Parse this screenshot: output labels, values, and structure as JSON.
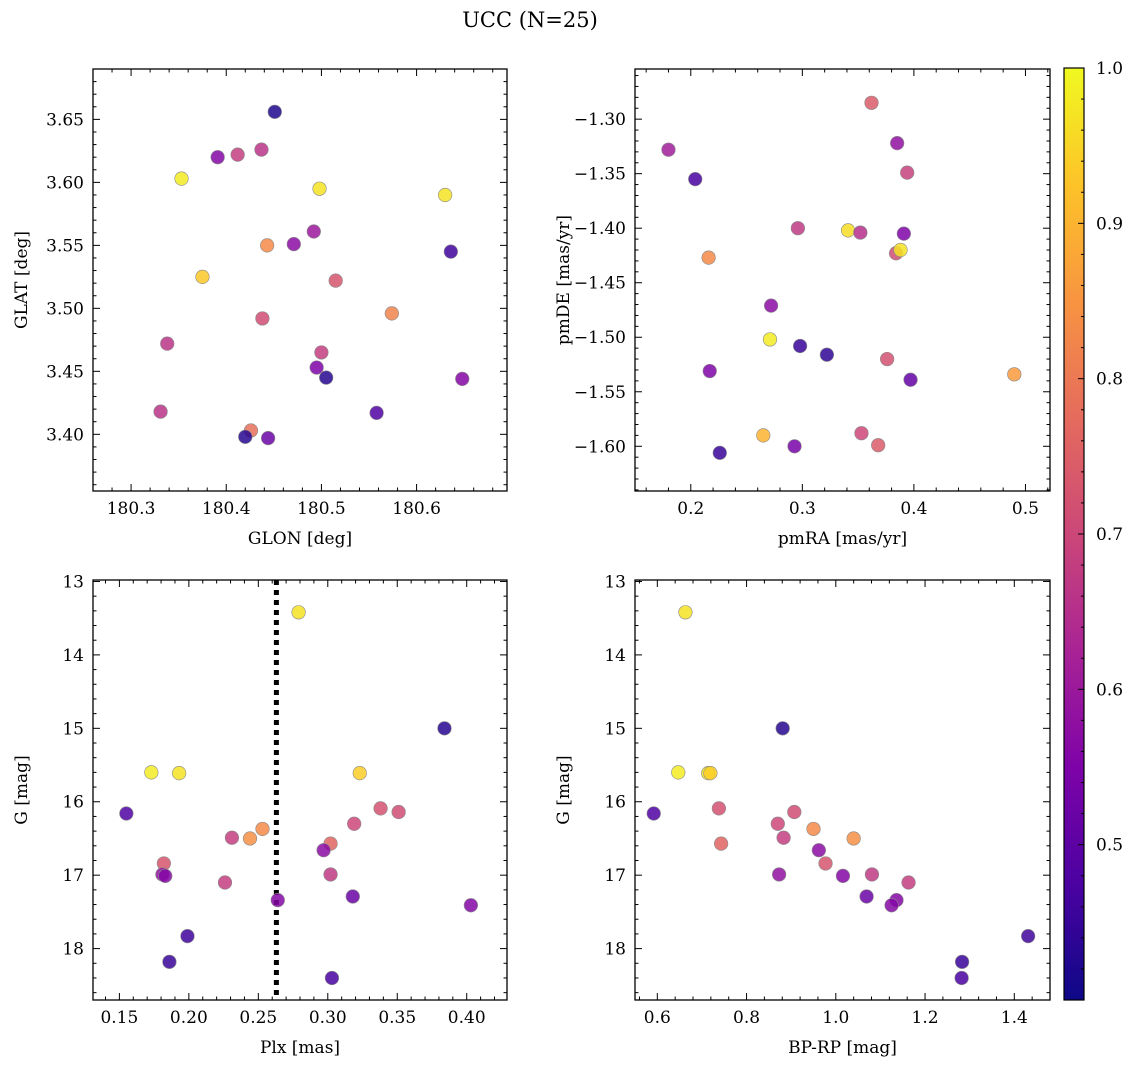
{
  "figure": {
    "title": "UCC (N=25)"
  },
  "colorbar": {
    "min": 0.4,
    "max": 1.0,
    "ticks": [
      0.5,
      0.6,
      0.7,
      0.8,
      0.9,
      1.0
    ],
    "tick_labels": [
      "0.5",
      "0.6",
      "0.7",
      "0.8",
      "0.9",
      "1.0"
    ],
    "colormap": "plasma"
  },
  "chart_data": [
    {
      "type": "scatter",
      "id": "glon-glat",
      "xlabel": "GLON [deg]",
      "ylabel": "GLAT [deg]",
      "xlim": [
        180.26,
        180.695
      ],
      "ylim": [
        3.355,
        3.69
      ],
      "xticks": [
        180.3,
        180.4,
        180.5,
        180.6
      ],
      "xtick_labels": [
        "180.3",
        "180.4",
        "180.5",
        "180.6"
      ],
      "yticks": [
        3.4,
        3.45,
        3.5,
        3.55,
        3.6,
        3.65
      ],
      "ytick_labels": [
        "3.40",
        "3.45",
        "3.50",
        "3.55",
        "3.60",
        "3.65"
      ],
      "points": [
        {
          "x": 180.451,
          "y": 3.656,
          "c": 0.42
        },
        {
          "x": 180.437,
          "y": 3.626,
          "c": 0.66
        },
        {
          "x": 180.412,
          "y": 3.622,
          "c": 0.68
        },
        {
          "x": 180.391,
          "y": 3.62,
          "c": 0.56
        },
        {
          "x": 180.353,
          "y": 3.603,
          "c": 0.98
        },
        {
          "x": 180.498,
          "y": 3.595,
          "c": 0.97
        },
        {
          "x": 180.63,
          "y": 3.59,
          "c": 0.97
        },
        {
          "x": 180.471,
          "y": 3.551,
          "c": 0.57
        },
        {
          "x": 180.443,
          "y": 3.55,
          "c": 0.83
        },
        {
          "x": 180.492,
          "y": 3.561,
          "c": 0.6
        },
        {
          "x": 180.636,
          "y": 3.545,
          "c": 0.46
        },
        {
          "x": 180.375,
          "y": 3.525,
          "c": 0.93
        },
        {
          "x": 180.515,
          "y": 3.522,
          "c": 0.73
        },
        {
          "x": 180.574,
          "y": 3.496,
          "c": 0.82
        },
        {
          "x": 180.438,
          "y": 3.492,
          "c": 0.71
        },
        {
          "x": 180.338,
          "y": 3.472,
          "c": 0.66
        },
        {
          "x": 180.5,
          "y": 3.465,
          "c": 0.68
        },
        {
          "x": 180.495,
          "y": 3.453,
          "c": 0.55
        },
        {
          "x": 180.505,
          "y": 3.445,
          "c": 0.43
        },
        {
          "x": 180.648,
          "y": 3.444,
          "c": 0.56
        },
        {
          "x": 180.331,
          "y": 3.418,
          "c": 0.66
        },
        {
          "x": 180.558,
          "y": 3.417,
          "c": 0.48
        },
        {
          "x": 180.426,
          "y": 3.403,
          "c": 0.78
        },
        {
          "x": 180.42,
          "y": 3.398,
          "c": 0.43
        },
        {
          "x": 180.444,
          "y": 3.397,
          "c": 0.52
        }
      ]
    },
    {
      "type": "scatter",
      "id": "pmra-pmde",
      "xlabel": "pmRA [mas/yr]",
      "ylabel": "pmDE [mas/yr]",
      "xlim": [
        0.15,
        0.522
      ],
      "ylim": [
        -1.641,
        -1.254
      ],
      "xticks": [
        0.2,
        0.3,
        0.4,
        0.5
      ],
      "xtick_labels": [
        "0.2",
        "0.3",
        "0.4",
        "0.5"
      ],
      "yticks": [
        -1.6,
        -1.55,
        -1.5,
        -1.45,
        -1.4,
        -1.35,
        -1.3
      ],
      "ytick_labels": [
        "−1.60",
        "−1.55",
        "−1.50",
        "−1.45",
        "−1.40",
        "−1.35",
        "−1.30"
      ],
      "points": [
        {
          "x": 0.362,
          "y": -1.285,
          "c": 0.74
        },
        {
          "x": 0.385,
          "y": -1.322,
          "c": 0.58
        },
        {
          "x": 0.18,
          "y": -1.328,
          "c": 0.61
        },
        {
          "x": 0.394,
          "y": -1.349,
          "c": 0.69
        },
        {
          "x": 0.204,
          "y": -1.355,
          "c": 0.47
        },
        {
          "x": 0.296,
          "y": -1.4,
          "c": 0.67
        },
        {
          "x": 0.341,
          "y": -1.402,
          "c": 0.96
        },
        {
          "x": 0.352,
          "y": -1.404,
          "c": 0.65
        },
        {
          "x": 0.391,
          "y": -1.405,
          "c": 0.55
        },
        {
          "x": 0.384,
          "y": -1.423,
          "c": 0.71
        },
        {
          "x": 0.388,
          "y": -1.42,
          "c": 0.97
        },
        {
          "x": 0.216,
          "y": -1.427,
          "c": 0.83
        },
        {
          "x": 0.272,
          "y": -1.471,
          "c": 0.57
        },
        {
          "x": 0.271,
          "y": -1.502,
          "c": 0.98
        },
        {
          "x": 0.298,
          "y": -1.508,
          "c": 0.45
        },
        {
          "x": 0.322,
          "y": -1.516,
          "c": 0.44
        },
        {
          "x": 0.376,
          "y": -1.52,
          "c": 0.72
        },
        {
          "x": 0.217,
          "y": -1.531,
          "c": 0.55
        },
        {
          "x": 0.49,
          "y": -1.534,
          "c": 0.86
        },
        {
          "x": 0.397,
          "y": -1.539,
          "c": 0.51
        },
        {
          "x": 0.353,
          "y": -1.588,
          "c": 0.7
        },
        {
          "x": 0.265,
          "y": -1.59,
          "c": 0.9
        },
        {
          "x": 0.293,
          "y": -1.6,
          "c": 0.54
        },
        {
          "x": 0.368,
          "y": -1.599,
          "c": 0.74
        },
        {
          "x": 0.226,
          "y": -1.606,
          "c": 0.45
        }
      ]
    },
    {
      "type": "scatter",
      "id": "plx-g",
      "xlabel": "Plx [mas]",
      "ylabel": "G [mag]",
      "xlim": [
        0.131,
        0.429
      ],
      "ylim": [
        18.7,
        12.98
      ],
      "xticks": [
        0.15,
        0.2,
        0.25,
        0.3,
        0.35,
        0.4
      ],
      "xtick_labels": [
        "0.15",
        "0.20",
        "0.25",
        "0.30",
        "0.35",
        "0.40"
      ],
      "yticks": [
        13,
        14,
        15,
        16,
        17,
        18
      ],
      "ytick_labels": [
        "13",
        "14",
        "15",
        "16",
        "17",
        "18"
      ],
      "vline": 0.263,
      "points": [
        {
          "x": 0.279,
          "y": 13.42,
          "c": 0.97
        },
        {
          "x": 0.384,
          "y": 15.0,
          "c": 0.43
        },
        {
          "x": 0.173,
          "y": 15.6,
          "c": 0.98
        },
        {
          "x": 0.193,
          "y": 15.61,
          "c": 0.97
        },
        {
          "x": 0.323,
          "y": 15.61,
          "c": 0.94
        },
        {
          "x": 0.155,
          "y": 16.16,
          "c": 0.48
        },
        {
          "x": 0.338,
          "y": 16.09,
          "c": 0.72
        },
        {
          "x": 0.351,
          "y": 16.14,
          "c": 0.71
        },
        {
          "x": 0.319,
          "y": 16.3,
          "c": 0.7
        },
        {
          "x": 0.253,
          "y": 16.37,
          "c": 0.83
        },
        {
          "x": 0.244,
          "y": 16.5,
          "c": 0.84
        },
        {
          "x": 0.231,
          "y": 16.49,
          "c": 0.68
        },
        {
          "x": 0.302,
          "y": 16.57,
          "c": 0.76
        },
        {
          "x": 0.297,
          "y": 16.66,
          "c": 0.57
        },
        {
          "x": 0.182,
          "y": 16.84,
          "c": 0.73
        },
        {
          "x": 0.181,
          "y": 16.99,
          "c": 0.58
        },
        {
          "x": 0.183,
          "y": 17.01,
          "c": 0.56
        },
        {
          "x": 0.302,
          "y": 16.99,
          "c": 0.67
        },
        {
          "x": 0.226,
          "y": 17.1,
          "c": 0.68
        },
        {
          "x": 0.318,
          "y": 17.29,
          "c": 0.52
        },
        {
          "x": 0.264,
          "y": 17.34,
          "c": 0.56
        },
        {
          "x": 0.403,
          "y": 17.41,
          "c": 0.56
        },
        {
          "x": 0.199,
          "y": 17.83,
          "c": 0.46
        },
        {
          "x": 0.186,
          "y": 18.18,
          "c": 0.45
        },
        {
          "x": 0.303,
          "y": 18.4,
          "c": 0.47
        }
      ]
    },
    {
      "type": "scatter",
      "id": "bprp-g",
      "xlabel": "BP-RP [mag]",
      "ylabel": "G [mag]",
      "xlim": [
        0.55,
        1.48
      ],
      "ylim": [
        18.7,
        12.98
      ],
      "xticks": [
        0.6,
        0.8,
        1.0,
        1.2,
        1.4
      ],
      "xtick_labels": [
        "0.6",
        "0.8",
        "1.0",
        "1.2",
        "1.4"
      ],
      "yticks": [
        13,
        14,
        15,
        16,
        17,
        18
      ],
      "ytick_labels": [
        "13",
        "14",
        "15",
        "16",
        "17",
        "18"
      ],
      "points": [
        {
          "x": 0.663,
          "y": 13.42,
          "c": 0.97
        },
        {
          "x": 0.881,
          "y": 15.0,
          "c": 0.43
        },
        {
          "x": 0.647,
          "y": 15.6,
          "c": 0.98
        },
        {
          "x": 0.714,
          "y": 15.61,
          "c": 0.97
        },
        {
          "x": 0.719,
          "y": 15.61,
          "c": 0.94
        },
        {
          "x": 0.592,
          "y": 16.16,
          "c": 0.48
        },
        {
          "x": 0.738,
          "y": 16.09,
          "c": 0.72
        },
        {
          "x": 0.907,
          "y": 16.14,
          "c": 0.71
        },
        {
          "x": 0.87,
          "y": 16.3,
          "c": 0.7
        },
        {
          "x": 0.95,
          "y": 16.37,
          "c": 0.83
        },
        {
          "x": 1.04,
          "y": 16.5,
          "c": 0.84
        },
        {
          "x": 0.883,
          "y": 16.49,
          "c": 0.68
        },
        {
          "x": 0.743,
          "y": 16.57,
          "c": 0.76
        },
        {
          "x": 0.962,
          "y": 16.66,
          "c": 0.57
        },
        {
          "x": 0.977,
          "y": 16.84,
          "c": 0.73
        },
        {
          "x": 0.873,
          "y": 16.99,
          "c": 0.58
        },
        {
          "x": 1.016,
          "y": 17.01,
          "c": 0.56
        },
        {
          "x": 1.081,
          "y": 16.99,
          "c": 0.67
        },
        {
          "x": 1.163,
          "y": 17.1,
          "c": 0.68
        },
        {
          "x": 1.069,
          "y": 17.29,
          "c": 0.52
        },
        {
          "x": 1.136,
          "y": 17.34,
          "c": 0.56
        },
        {
          "x": 1.125,
          "y": 17.41,
          "c": 0.56
        },
        {
          "x": 1.431,
          "y": 17.83,
          "c": 0.46
        },
        {
          "x": 1.283,
          "y": 18.18,
          "c": 0.45
        },
        {
          "x": 1.282,
          "y": 18.4,
          "c": 0.47
        }
      ]
    }
  ]
}
